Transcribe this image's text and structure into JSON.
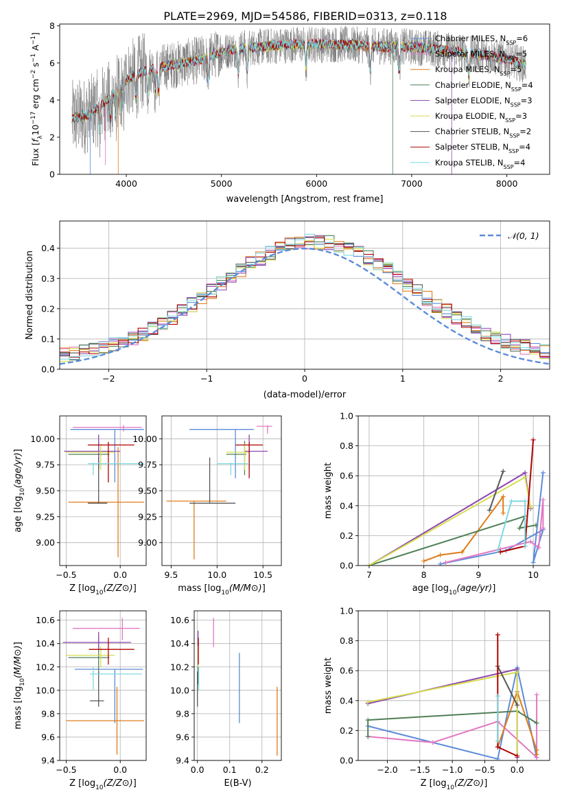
{
  "figure_title": "PLATE=2969, MJD=54586, FIBERID=0313, z=0.118",
  "colors": {
    "chabrier_miles": "#5b8bd9",
    "salpeter_miles": "#e377c2",
    "kroupa_miles": "#e07b1a",
    "chabrier_elodie": "#4f7f56",
    "salpeter_elodie": "#8e44ad",
    "kroupa_elodie": "#d4dd4f",
    "chabrier_stelib": "#555555",
    "salpeter_stelib": "#b00000",
    "kroupa_stelib": "#7fd8e0",
    "normal": "#5b8bd9",
    "grid": "#b0b0b0"
  },
  "chart_data": [
    {
      "id": "spectrum",
      "type": "line",
      "xlabel": "wavelength [Angstrom, rest frame]",
      "ylabel_parts": [
        "Flux [",
        "f",
        "λ",
        "10",
        "−17",
        " erg cm",
        "−2",
        " s",
        "−1",
        " A",
        "−1",
        "]"
      ],
      "xlim": [
        3300,
        8450
      ],
      "ylim": [
        0,
        8.1
      ],
      "xticks": [
        4000,
        5000,
        6000,
        7000,
        8000
      ],
      "yticks": [
        0,
        2,
        4,
        6,
        8
      ],
      "grid": false,
      "legend_placement": "right",
      "continuum": {
        "x": [
          3430,
          3600,
          3800,
          4000,
          4200,
          4500,
          4800,
          5000,
          5200,
          5500,
          5800,
          6000,
          6300,
          6600,
          6900,
          7200,
          7500,
          7800,
          8000,
          8200
        ],
        "y": [
          3.0,
          3.2,
          4.0,
          5.1,
          5.6,
          5.9,
          6.2,
          6.6,
          6.8,
          6.9,
          7.0,
          7.0,
          7.0,
          6.9,
          6.9,
          6.8,
          6.6,
          6.4,
          6.2,
          5.9
        ]
      },
      "series": [
        {
          "key": "chabrier_miles",
          "label": "Chabrier MILES, N",
          "ssp": "6"
        },
        {
          "key": "salpeter_miles",
          "label": "Salpeter MILES, N",
          "ssp": "5"
        },
        {
          "key": "kroupa_miles",
          "label": "Kroupa MILES, N",
          "ssp": "5"
        },
        {
          "key": "chabrier_elodie",
          "label": "Chabrier ELODIE, N",
          "ssp": "4"
        },
        {
          "key": "salpeter_elodie",
          "label": "Salpeter ELODIE, N",
          "ssp": "3"
        },
        {
          "key": "kroupa_elodie",
          "label": "Kroupa ELODIE, N",
          "ssp": "3"
        },
        {
          "key": "chabrier_stelib",
          "label": "Chabrier STELIB, N",
          "ssp": "2"
        },
        {
          "key": "salpeter_stelib",
          "label": "Salpeter STELIB, N",
          "ssp": "4"
        },
        {
          "key": "kroupa_stelib",
          "label": "Kroupa STELIB, N",
          "ssp": "4"
        }
      ],
      "ssp_sub": "SSP"
    },
    {
      "id": "residuals",
      "type": "step-histogram",
      "xlabel": "(data-model)/error",
      "ylabel": "Normed distribution",
      "xlim": [
        -2.5,
        2.5
      ],
      "ylim": [
        0,
        0.49
      ],
      "xticks": [
        -2,
        -1,
        0,
        1,
        2
      ],
      "yticks": [
        0.0,
        0.1,
        0.2,
        0.3,
        0.4
      ],
      "grid": true,
      "bin_width": 0.1,
      "legend": "N(0,1)",
      "legend_placement": "top-right",
      "normal_curve": {
        "mean": 0,
        "sigma": 1
      }
    },
    {
      "id": "age_vs_Z",
      "type": "errorbar",
      "xlabel": "Z [log10(Z/Z⊙)]",
      "ylabel": "age  [log10(age/yr)]",
      "xlim": [
        -0.56,
        0.24
      ],
      "ylim": [
        8.78,
        10.22
      ],
      "xticks": [
        -0.5,
        0.0
      ],
      "yticks": [
        9.0,
        9.25,
        9.5,
        9.75,
        10.0
      ],
      "grid": true,
      "points": [
        {
          "key": "chabrier_miles",
          "x": -0.05,
          "y": 10.09,
          "xlo": -0.46,
          "xhi": 0.22,
          "ylo": 9.58,
          "yhi": 10.09
        },
        {
          "key": "salpeter_miles",
          "x": 0.03,
          "y": 10.11,
          "xlo": -0.44,
          "xhi": 0.2,
          "ylo": 10.07,
          "yhi": 10.13
        },
        {
          "key": "kroupa_miles",
          "x": -0.02,
          "y": 9.39,
          "xlo": -0.48,
          "xhi": 0.22,
          "ylo": 8.86,
          "yhi": 9.92
        },
        {
          "key": "chabrier_elodie",
          "x": -0.2,
          "y": 9.85,
          "xlo": -0.48,
          "xhi": -0.1,
          "ylo": 9.7,
          "yhi": 9.98
        },
        {
          "key": "salpeter_elodie",
          "x": -0.2,
          "y": 9.88,
          "xlo": -0.52,
          "xhi": 0.0,
          "ylo": 9.74,
          "yhi": 10.04
        },
        {
          "key": "kroupa_elodie",
          "x": -0.18,
          "y": 9.87,
          "xlo": -0.5,
          "xhi": -0.05,
          "ylo": 9.7,
          "yhi": 9.95
        },
        {
          "key": "chabrier_stelib",
          "x": -0.2,
          "y": 9.38,
          "xlo": -0.3,
          "xhi": -0.12,
          "ylo": 9.38,
          "yhi": 9.82
        },
        {
          "key": "salpeter_stelib",
          "x": -0.11,
          "y": 9.94,
          "xlo": -0.3,
          "xhi": 0.13,
          "ylo": 9.58,
          "yhi": 9.97
        },
        {
          "key": "kroupa_stelib",
          "x": -0.25,
          "y": 9.76,
          "xlo": -0.3,
          "xhi": 0.22,
          "ylo": 9.65,
          "yhi": 9.77
        }
      ]
    },
    {
      "id": "age_vs_mass",
      "type": "errorbar",
      "xlabel": "mass [log10(M/M⊙)]",
      "ylabel": "",
      "xlim": [
        9.4,
        10.7
      ],
      "ylim": [
        8.78,
        10.22
      ],
      "xticks": [
        9.5,
        10.0,
        10.5
      ],
      "yticks": [
        9.0,
        9.25,
        9.5,
        9.75,
        10.0
      ],
      "grid": true,
      "points": [
        {
          "key": "chabrier_miles",
          "x": 10.2,
          "y": 10.09,
          "xlo": 9.7,
          "xhi": 10.4,
          "ylo": 9.62,
          "yhi": 10.09
        },
        {
          "key": "salpeter_miles",
          "x": 10.55,
          "y": 10.12,
          "xlo": 10.43,
          "xhi": 10.6,
          "ylo": 10.05,
          "yhi": 10.13
        },
        {
          "key": "kroupa_miles",
          "x": 9.75,
          "y": 9.4,
          "xlo": 9.45,
          "xhi": 10.1,
          "ylo": 8.84,
          "yhi": 9.4
        },
        {
          "key": "chabrier_elodie",
          "x": 10.3,
          "y": 9.85,
          "xlo": 10.1,
          "xhi": 10.32,
          "ylo": 9.65,
          "yhi": 9.98
        },
        {
          "key": "salpeter_elodie",
          "x": 10.35,
          "y": 9.88,
          "xlo": 10.3,
          "xhi": 10.55,
          "ylo": 9.7,
          "yhi": 10.04
        },
        {
          "key": "kroupa_elodie",
          "x": 10.3,
          "y": 9.87,
          "xlo": 10.1,
          "xhi": 10.35,
          "ylo": 9.7,
          "yhi": 9.95
        },
        {
          "key": "chabrier_stelib",
          "x": 9.92,
          "y": 9.38,
          "xlo": 9.7,
          "xhi": 10.2,
          "ylo": 9.38,
          "yhi": 9.82
        },
        {
          "key": "salpeter_stelib",
          "x": 10.35,
          "y": 9.94,
          "xlo": 10.2,
          "xhi": 10.5,
          "ylo": 9.62,
          "yhi": 9.97
        },
        {
          "key": "kroupa_stelib",
          "x": 10.15,
          "y": 9.76,
          "xlo": 10.0,
          "xhi": 10.35,
          "ylo": 9.65,
          "yhi": 9.77
        }
      ]
    },
    {
      "id": "weight_vs_age",
      "type": "line",
      "xlabel": "age  [log10(age/yr)]",
      "ylabel": "mass weight",
      "xlim": [
        6.8,
        10.3
      ],
      "ylim": [
        0.0,
        1.0
      ],
      "xticks": [
        7,
        8,
        9,
        10
      ],
      "yticks": [
        0.0,
        0.2,
        0.4,
        0.6,
        0.8,
        1.0
      ],
      "grid": true,
      "series": [
        {
          "key": "chabrier_miles",
          "x": [
            8.3,
            9.5,
            10.18,
            10.0,
            10.18
          ],
          "y": [
            0.01,
            0.1,
            0.24,
            0.02,
            0.62
          ]
        },
        {
          "key": "salpeter_miles",
          "x": [
            8.4,
            9.4,
            9.95,
            10.1,
            10.18,
            10.18
          ],
          "y": [
            0.02,
            0.11,
            0.16,
            0.12,
            0.44,
            0.25
          ]
        },
        {
          "key": "kroupa_miles",
          "x": [
            8.0,
            8.3,
            8.7,
            9.45,
            9.45
          ],
          "y": [
            0.03,
            0.07,
            0.09,
            0.46,
            0.35
          ]
        },
        {
          "key": "chabrier_elodie",
          "x": 7.0,
          "x_list": [
            7.0,
            9.85,
            9.75,
            10.05
          ],
          "y": [
            0.0,
            0.33,
            0.25,
            0.27
          ]
        },
        {
          "key": "salpeter_elodie",
          "x": [
            7.0,
            9.85,
            9.95
          ],
          "y": [
            0.0,
            0.62,
            0.38
          ]
        },
        {
          "key": "kroupa_elodie",
          "x": [
            7.0,
            9.85,
            9.95
          ],
          "y": [
            0.0,
            0.59,
            0.39
          ]
        },
        {
          "key": "chabrier_stelib",
          "x": [
            9.2,
            9.45
          ],
          "y": [
            0.37,
            0.63
          ]
        },
        {
          "key": "salpeter_stelib",
          "x": [
            9.4,
            9.85,
            10.0
          ],
          "y": [
            0.09,
            0.13,
            0.84
          ]
        },
        {
          "key": "kroupa_stelib",
          "x": [
            9.35,
            9.6,
            9.85,
            9.85
          ],
          "y": [
            0.1,
            0.43,
            0.43,
            0.13
          ]
        }
      ]
    },
    {
      "id": "mass_vs_Z",
      "type": "errorbar",
      "xlabel": "Z [log10(Z/Z⊙)]",
      "ylabel": "mass [log10(M/M⊙)]",
      "xlim": [
        -0.56,
        0.24
      ],
      "ylim": [
        9.4,
        10.68
      ],
      "xticks": [
        -0.5,
        0.0
      ],
      "yticks": [
        9.4,
        9.6,
        9.8,
        10.0,
        10.2,
        10.4,
        10.6
      ],
      "grid": true,
      "points": [
        {
          "key": "chabrier_miles",
          "x": -0.05,
          "y": 10.18,
          "xlo": -0.42,
          "xhi": 0.21,
          "ylo": 9.72,
          "yhi": 10.18
        },
        {
          "key": "salpeter_miles",
          "x": 0.02,
          "y": 10.53,
          "xlo": -0.44,
          "xhi": 0.18,
          "ylo": 10.43,
          "yhi": 10.62
        },
        {
          "key": "kroupa_miles",
          "x": -0.03,
          "y": 9.74,
          "xlo": -0.5,
          "xhi": 0.22,
          "ylo": 9.45,
          "yhi": 10.03
        },
        {
          "key": "chabrier_elodie",
          "x": -0.2,
          "y": 10.28,
          "xlo": -0.48,
          "xhi": -0.1,
          "ylo": 10.14,
          "yhi": 10.45
        },
        {
          "key": "salpeter_elodie",
          "x": -0.2,
          "y": 10.41,
          "xlo": -0.53,
          "xhi": 0.1,
          "ylo": 10.35,
          "yhi": 10.5
        },
        {
          "key": "kroupa_elodie",
          "x": -0.18,
          "y": 10.3,
          "xlo": -0.5,
          "xhi": -0.05,
          "ylo": 10.2,
          "yhi": 10.38
        },
        {
          "key": "chabrier_stelib",
          "x": -0.2,
          "y": 9.91,
          "xlo": -0.28,
          "xhi": -0.15,
          "ylo": 9.86,
          "yhi": 10.16
        },
        {
          "key": "salpeter_stelib",
          "x": -0.11,
          "y": 10.35,
          "xlo": -0.29,
          "xhi": 0.13,
          "ylo": 10.22,
          "yhi": 10.45
        },
        {
          "key": "kroupa_stelib",
          "x": -0.25,
          "y": 10.14,
          "xlo": -0.28,
          "xhi": 0.2,
          "ylo": 10.0,
          "yhi": 10.2
        }
      ]
    },
    {
      "id": "mass_vs_ebv",
      "type": "errorbar",
      "xlabel": "E(B-V)",
      "ylabel": "",
      "xlim": [
        -0.01,
        0.26
      ],
      "ylim": [
        9.4,
        10.68
      ],
      "xticks": [
        0.0,
        0.1,
        0.2
      ],
      "yticks": [
        9.4,
        9.6,
        9.8,
        10.0,
        10.2,
        10.4,
        10.6
      ],
      "grid": true,
      "points": [
        {
          "key": "chabrier_miles",
          "x": 0.13,
          "ylo": 9.72,
          "yhi": 10.32
        },
        {
          "key": "salpeter_miles",
          "x": 0.05,
          "ylo": 10.37,
          "yhi": 10.62
        },
        {
          "key": "kroupa_miles",
          "x": 0.247,
          "ylo": 9.44,
          "yhi": 10.03
        },
        {
          "key": "chabrier_elodie",
          "x": 0.002,
          "ylo": 10.05,
          "yhi": 10.3
        },
        {
          "key": "salpeter_elodie",
          "x": 0.002,
          "ylo": 10.35,
          "yhi": 10.51
        },
        {
          "key": "kroupa_elodie",
          "x": 0.002,
          "ylo": 10.2,
          "yhi": 10.38
        },
        {
          "key": "chabrier_stelib",
          "x": 0.0,
          "ylo": 9.86,
          "yhi": 10.16
        },
        {
          "key": "salpeter_stelib",
          "x": 0.003,
          "ylo": 10.22,
          "yhi": 10.45
        },
        {
          "key": "kroupa_stelib",
          "x": 0.004,
          "ylo": 10.0,
          "yhi": 10.2
        }
      ]
    },
    {
      "id": "weight_vs_Z",
      "type": "line",
      "xlabel": "Z [log10(Z/Z⊙)]",
      "ylabel": "mass weight",
      "xlim": [
        -2.45,
        0.5
      ],
      "ylim": [
        0.0,
        1.0
      ],
      "xticks": [
        -2.0,
        -1.5,
        -1.0,
        -0.5,
        0.0
      ],
      "yticks": [
        0.0,
        0.2,
        0.4,
        0.6,
        0.8,
        1.0
      ],
      "grid": true,
      "series": [
        {
          "key": "chabrier_miles",
          "x": [
            -2.3,
            -0.3,
            0.0,
            0.3
          ],
          "y": [
            0.23,
            0.01,
            0.62,
            0.02
          ]
        },
        {
          "key": "salpeter_miles",
          "x": [
            -2.3,
            -1.3,
            -0.3,
            0.3,
            0.3
          ],
          "y": [
            0.16,
            0.12,
            0.26,
            0.02,
            0.44
          ]
        },
        {
          "key": "kroupa_miles",
          "x": [
            -0.3,
            0.0,
            0.3,
            0.3
          ],
          "y": [
            0.09,
            0.46,
            0.07,
            0.04
          ]
        },
        {
          "key": "chabrier_elodie",
          "x": [
            -2.3,
            -2.3,
            0.0,
            0.3
          ],
          "y": [
            0.16,
            0.27,
            0.33,
            0.25
          ]
        },
        {
          "key": "salpeter_elodie",
          "x": [
            -2.3,
            0.0,
            0.0
          ],
          "y": [
            0.38,
            0.61,
            0.02
          ]
        },
        {
          "key": "kroupa_elodie",
          "x": [
            -2.3,
            0.0,
            0.0
          ],
          "y": [
            0.39,
            0.59,
            0.03
          ]
        },
        {
          "key": "chabrier_stelib",
          "x": [
            -0.3,
            0.0
          ],
          "y": [
            0.63,
            0.37
          ]
        },
        {
          "key": "salpeter_stelib",
          "x": [
            -0.3,
            -0.3,
            0.0
          ],
          "y": [
            0.84,
            0.09,
            0.03
          ]
        },
        {
          "key": "kroupa_stelib",
          "x": [
            -0.3,
            -0.3
          ],
          "y": [
            0.43,
            0.13
          ]
        }
      ]
    }
  ]
}
